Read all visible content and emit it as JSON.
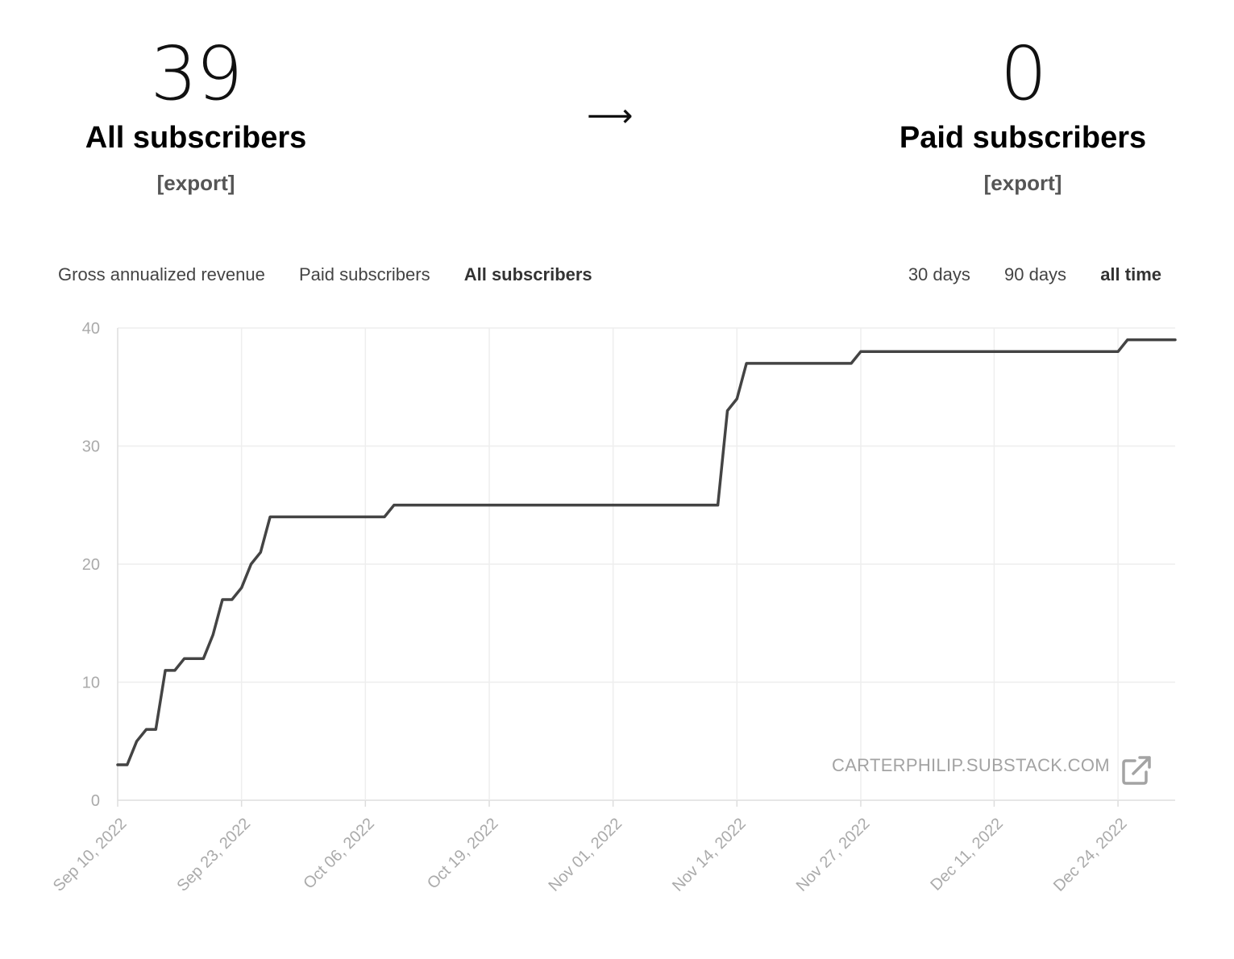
{
  "stats": {
    "all": {
      "value": "39",
      "label": "All subscribers",
      "export": "[export]"
    },
    "arrow": "⟶",
    "paid": {
      "value": "0",
      "label": "Paid subscribers",
      "export": "[export]"
    }
  },
  "tabs": [
    {
      "label": "Gross annualized revenue",
      "active": false
    },
    {
      "label": "Paid subscribers",
      "active": false
    },
    {
      "label": "All subscribers",
      "active": true
    }
  ],
  "ranges": [
    {
      "label": "30 days",
      "active": false
    },
    {
      "label": "90 days",
      "active": false
    },
    {
      "label": "all time",
      "active": true
    }
  ],
  "watermark": "CARTERPHILIP.SUBSTACK.COM",
  "colors": {
    "line": "#444444",
    "grid": "#eeeeee",
    "axis": "#dddddd",
    "tick": "#aaaaaa"
  },
  "chart_data": {
    "type": "line",
    "title": "",
    "xlabel": "",
    "ylabel": "",
    "ylim": [
      0,
      40
    ],
    "yticks": [
      0,
      10,
      20,
      30,
      40
    ],
    "xticks": [
      "Sep 10, 2022",
      "Sep 23, 2022",
      "Oct 06, 2022",
      "Oct 19, 2022",
      "Nov 01, 2022",
      "Nov 14, 2022",
      "Nov 27, 2022",
      "Dec 11, 2022",
      "Dec 24, 2022"
    ],
    "xticks_iso": [
      "2022-09-10",
      "2022-09-23",
      "2022-10-06",
      "2022-10-19",
      "2022-11-01",
      "2022-11-14",
      "2022-11-27",
      "2022-12-11",
      "2022-12-24"
    ],
    "xlim": [
      "2022-09-10",
      "2022-12-30"
    ],
    "grid": true,
    "series": [
      {
        "x": [
          "2022-09-10",
          "2022-09-11",
          "2022-09-12",
          "2022-09-13",
          "2022-09-14",
          "2022-09-15",
          "2022-09-16",
          "2022-09-17",
          "2022-09-18",
          "2022-09-19",
          "2022-09-20",
          "2022-09-21",
          "2022-09-22",
          "2022-09-23",
          "2022-09-24",
          "2022-09-25",
          "2022-09-26",
          "2022-09-27",
          "2022-10-08",
          "2022-10-09",
          "2022-11-12",
          "2022-11-13",
          "2022-11-14",
          "2022-11-15",
          "2022-11-26",
          "2022-11-27",
          "2022-12-24",
          "2022-12-25",
          "2022-12-30"
        ],
        "values": [
          3,
          3,
          5,
          6,
          6,
          11,
          11,
          12,
          12,
          12,
          14,
          17,
          17,
          18,
          20,
          21,
          24,
          24,
          24,
          25,
          25,
          33,
          34,
          37,
          37,
          38,
          38,
          39,
          39
        ]
      }
    ]
  }
}
